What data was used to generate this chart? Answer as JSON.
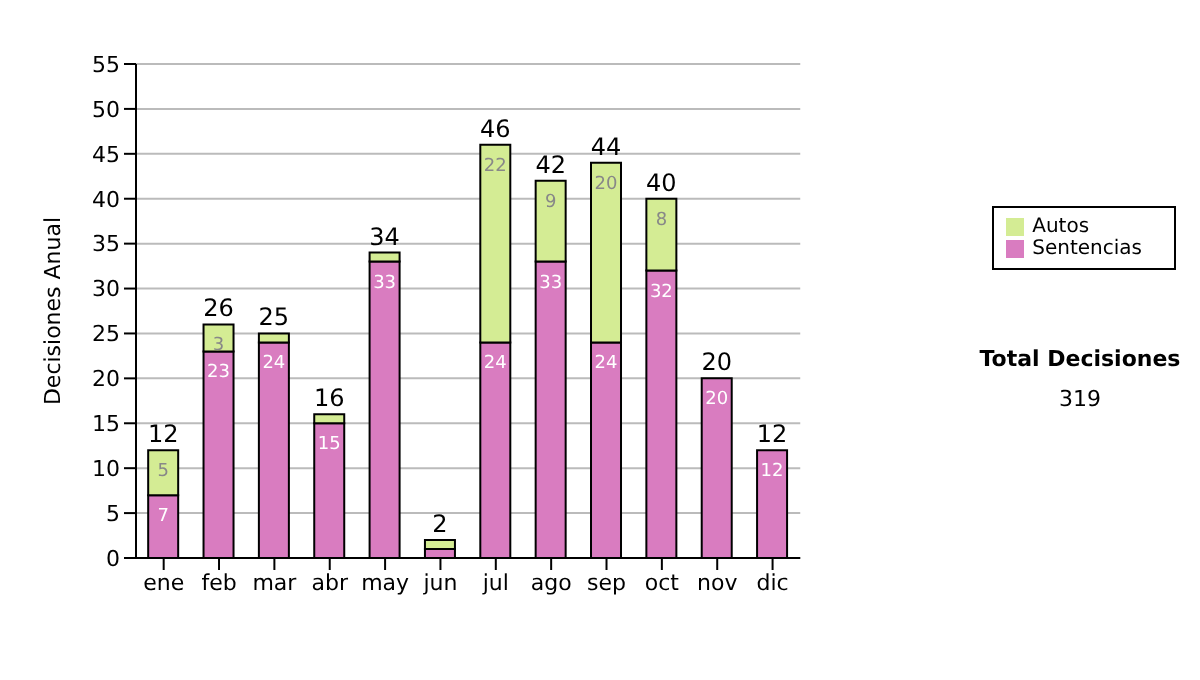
{
  "chart_data": {
    "type": "bar",
    "stacked": true,
    "ylabel": "Decisiones Anual",
    "categories": [
      "ene",
      "feb",
      "mar",
      "abr",
      "may",
      "jun",
      "jul",
      "ago",
      "sep",
      "oct",
      "nov",
      "dic"
    ],
    "series": [
      {
        "name": "Sentencias",
        "color": "#d97cc0",
        "values": [
          7,
          23,
          24,
          15,
          33,
          1,
          24,
          33,
          24,
          32,
          20,
          12
        ],
        "value_labels": [
          "7",
          "23",
          "24",
          "15",
          "33",
          null,
          "24",
          "33",
          "24",
          "32",
          "20",
          "12"
        ]
      },
      {
        "name": "Autos",
        "color": "#d4ec94",
        "values": [
          5,
          3,
          1,
          1,
          1,
          1,
          22,
          9,
          20,
          8,
          0,
          0
        ],
        "value_labels": [
          "5",
          "3",
          null,
          null,
          null,
          null,
          "22",
          "9",
          "20",
          "8",
          null,
          null
        ]
      }
    ],
    "totals": [
      "12",
      "26",
      "25",
      "16",
      "34",
      "2",
      "46",
      "42",
      "44",
      "40",
      "20",
      "12"
    ],
    "ylim": [
      0,
      55
    ],
    "yticks": [
      0,
      5,
      10,
      15,
      20,
      25,
      30,
      35,
      40,
      45,
      50,
      55
    ],
    "grid": "y",
    "legend": "right",
    "annotations": [
      "Total Decisiones",
      "319"
    ]
  }
}
